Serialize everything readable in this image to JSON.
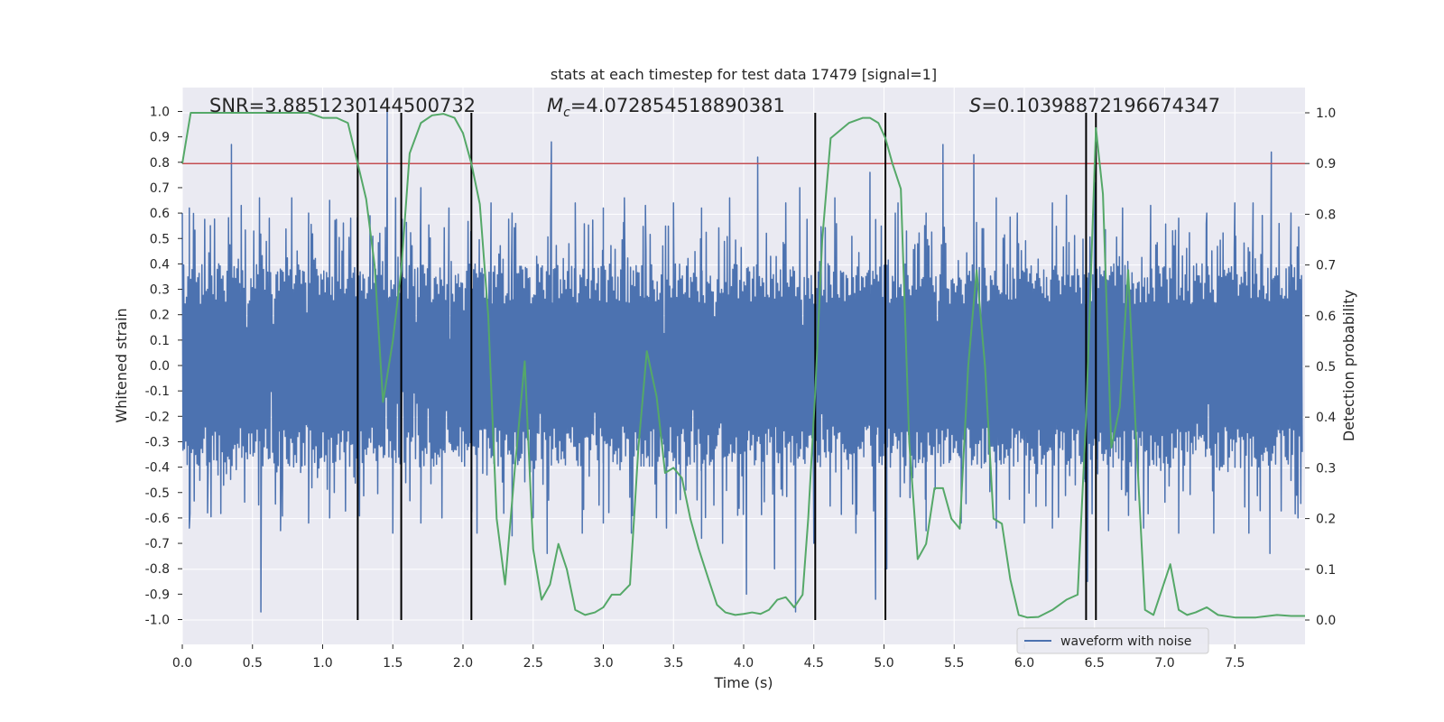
{
  "chart_data": {
    "type": "line",
    "title": "stats at each timestep for test data 17479 [signal=1]",
    "xlabel": "Time (s)",
    "ylabel": "Whitened strain",
    "y2label": "Detection probability",
    "xlim": [
      0.0,
      8.0
    ],
    "ylim": [
      -1.1,
      1.1
    ],
    "y2lim": [
      -0.05,
      1.05
    ],
    "x_ticks": [
      "0.0",
      "0.5",
      "1.0",
      "1.5",
      "2.0",
      "2.5",
      "3.0",
      "3.5",
      "4.0",
      "4.5",
      "5.0",
      "5.5",
      "6.0",
      "6.5",
      "7.0",
      "7.5"
    ],
    "y_ticks": [
      "1.0",
      "0.9",
      "0.8",
      "0.7",
      "0.6",
      "0.5",
      "0.4",
      "0.3",
      "0.2",
      "0.1",
      "0.0",
      "-0.1",
      "-0.2",
      "-0.3",
      "-0.4",
      "-0.5",
      "-0.6",
      "-0.7",
      "-0.8",
      "-0.9",
      "-1.0"
    ],
    "y2_ticks": [
      "1.0",
      "0.9",
      "0.8",
      "0.7",
      "0.6",
      "0.5",
      "0.4",
      "0.3",
      "0.2",
      "0.1",
      "0.0"
    ],
    "grid": true,
    "legend_position": "bottom-right",
    "annotations": {
      "snr": "SNR=3.8851230144500732",
      "mc_symbol": "M",
      "mc_subscript": "c",
      "mc_value": "=4.072854518890381",
      "s_symbol": "S",
      "s_value": "=0.10398872196674347"
    },
    "threshold": 0.9,
    "vertical_lines": [
      1.25,
      1.56,
      2.06,
      4.51,
      5.01,
      6.44,
      6.51
    ],
    "waveform": {
      "name": "waveform with noise",
      "color": "#4c72b0",
      "envelope_dense": 0.4,
      "envelope_mid": 0.6,
      "peaks_pos": [
        [
          0.05,
          0.62
        ],
        [
          0.2,
          0.55
        ],
        [
          0.35,
          0.87
        ],
        [
          0.42,
          0.63
        ],
        [
          0.55,
          0.66
        ],
        [
          0.62,
          0.58
        ],
        [
          0.78,
          0.66
        ],
        [
          0.9,
          0.6
        ],
        [
          1.05,
          0.65
        ],
        [
          1.2,
          0.58
        ],
        [
          1.46,
          1.0
        ],
        [
          1.52,
          0.66
        ],
        [
          1.7,
          0.7
        ],
        [
          1.9,
          0.62
        ],
        [
          2.2,
          0.64
        ],
        [
          2.35,
          0.6
        ],
        [
          2.63,
          0.88
        ],
        [
          2.8,
          0.64
        ],
        [
          3.0,
          0.62
        ],
        [
          3.15,
          0.66
        ],
        [
          3.3,
          0.63
        ],
        [
          3.5,
          0.64
        ],
        [
          3.7,
          0.62
        ],
        [
          3.9,
          0.66
        ],
        [
          4.1,
          0.82
        ],
        [
          4.3,
          0.64
        ],
        [
          4.4,
          0.7
        ],
        [
          4.65,
          0.66
        ],
        [
          4.9,
          0.76
        ],
        [
          5.1,
          0.64
        ],
        [
          5.3,
          0.6
        ],
        [
          5.42,
          0.87
        ],
        [
          5.64,
          0.83
        ],
        [
          5.8,
          0.66
        ],
        [
          5.95,
          0.6
        ],
        [
          6.2,
          0.64
        ],
        [
          6.3,
          0.67
        ],
        [
          6.5,
          0.72
        ],
        [
          6.7,
          0.62
        ],
        [
          6.9,
          0.63
        ],
        [
          7.1,
          0.58
        ],
        [
          7.3,
          0.6
        ],
        [
          7.5,
          0.64
        ],
        [
          7.63,
          0.64
        ],
        [
          7.76,
          0.84
        ],
        [
          7.9,
          0.6
        ]
      ],
      "peaks_neg": [
        [
          0.05,
          -0.64
        ],
        [
          0.18,
          -0.58
        ],
        [
          0.56,
          -0.97
        ],
        [
          0.7,
          -0.65
        ],
        [
          0.9,
          -0.62
        ],
        [
          1.05,
          -0.6
        ],
        [
          1.25,
          -0.65
        ],
        [
          1.5,
          -0.66
        ],
        [
          1.7,
          -0.62
        ],
        [
          1.85,
          -0.6
        ],
        [
          2.1,
          -0.66
        ],
        [
          2.35,
          -0.67
        ],
        [
          2.6,
          -0.74
        ],
        [
          2.85,
          -0.66
        ],
        [
          3.0,
          -0.62
        ],
        [
          3.2,
          -0.66
        ],
        [
          3.45,
          -0.64
        ],
        [
          3.7,
          -0.68
        ],
        [
          3.85,
          -0.7
        ],
        [
          4.02,
          -0.9
        ],
        [
          4.22,
          -0.8
        ],
        [
          4.37,
          -0.97
        ],
        [
          4.5,
          -0.7
        ],
        [
          4.8,
          -0.66
        ],
        [
          4.94,
          -0.92
        ],
        [
          5.02,
          -0.8
        ],
        [
          5.3,
          -0.65
        ],
        [
          5.55,
          -0.62
        ],
        [
          5.8,
          -0.64
        ],
        [
          6.0,
          -0.62
        ],
        [
          6.2,
          -0.64
        ],
        [
          6.45,
          -0.85
        ],
        [
          6.6,
          -0.65
        ],
        [
          6.85,
          -0.64
        ],
        [
          7.1,
          -0.66
        ],
        [
          7.35,
          -0.66
        ],
        [
          7.6,
          -0.66
        ],
        [
          7.75,
          -0.74
        ],
        [
          7.95,
          -0.6
        ]
      ]
    },
    "probability": {
      "color": "#55a868",
      "x": [
        0.0,
        0.06,
        0.12,
        0.2,
        0.3,
        0.45,
        0.6,
        0.75,
        0.9,
        1.0,
        1.1,
        1.18,
        1.25,
        1.31,
        1.37,
        1.43,
        1.5,
        1.56,
        1.62,
        1.7,
        1.78,
        1.86,
        1.94,
        2.0,
        2.06,
        2.12,
        2.18,
        2.24,
        2.3,
        2.37,
        2.44,
        2.5,
        2.56,
        2.62,
        2.68,
        2.74,
        2.8,
        2.87,
        2.94,
        3.0,
        3.06,
        3.12,
        3.19,
        3.25,
        3.31,
        3.38,
        3.44,
        3.5,
        3.56,
        3.62,
        3.68,
        3.75,
        3.81,
        3.87,
        3.94,
        4.0,
        4.06,
        4.12,
        4.18,
        4.24,
        4.3,
        4.36,
        4.42,
        4.46,
        4.51,
        4.56,
        4.62,
        4.75,
        4.85,
        4.9,
        4.96,
        5.01,
        5.06,
        5.12,
        5.18,
        5.24,
        5.3,
        5.36,
        5.42,
        5.48,
        5.54,
        5.6,
        5.66,
        5.72,
        5.78,
        5.84,
        5.9,
        5.96,
        6.02,
        6.1,
        6.2,
        6.3,
        6.38,
        6.44,
        6.51,
        6.56,
        6.62,
        6.68,
        6.74,
        6.8,
        6.86,
        6.92,
        6.98,
        7.04,
        7.1,
        7.16,
        7.22,
        7.3,
        7.38,
        7.5,
        7.65,
        7.8,
        7.9,
        8.0
      ],
      "y": [
        0.9,
        1.0,
        1.0,
        1.0,
        1.0,
        1.0,
        1.0,
        1.0,
        1.0,
        0.99,
        0.99,
        0.98,
        0.9,
        0.83,
        0.7,
        0.43,
        0.55,
        0.69,
        0.92,
        0.98,
        0.995,
        0.998,
        0.99,
        0.96,
        0.9,
        0.82,
        0.6,
        0.2,
        0.07,
        0.3,
        0.51,
        0.14,
        0.04,
        0.07,
        0.15,
        0.1,
        0.02,
        0.01,
        0.015,
        0.025,
        0.05,
        0.05,
        0.07,
        0.34,
        0.53,
        0.44,
        0.29,
        0.3,
        0.28,
        0.2,
        0.14,
        0.08,
        0.03,
        0.015,
        0.01,
        0.012,
        0.015,
        0.012,
        0.02,
        0.04,
        0.045,
        0.025,
        0.05,
        0.2,
        0.45,
        0.75,
        0.95,
        0.98,
        0.99,
        0.99,
        0.98,
        0.95,
        0.9,
        0.85,
        0.35,
        0.12,
        0.15,
        0.26,
        0.26,
        0.2,
        0.18,
        0.5,
        0.69,
        0.5,
        0.2,
        0.19,
        0.08,
        0.01,
        0.005,
        0.006,
        0.02,
        0.04,
        0.05,
        0.4,
        0.97,
        0.84,
        0.34,
        0.42,
        0.69,
        0.34,
        0.02,
        0.01,
        0.06,
        0.11,
        0.02,
        0.01,
        0.015,
        0.025,
        0.01,
        0.005,
        0.005,
        0.01,
        0.008,
        0.008
      ]
    }
  }
}
